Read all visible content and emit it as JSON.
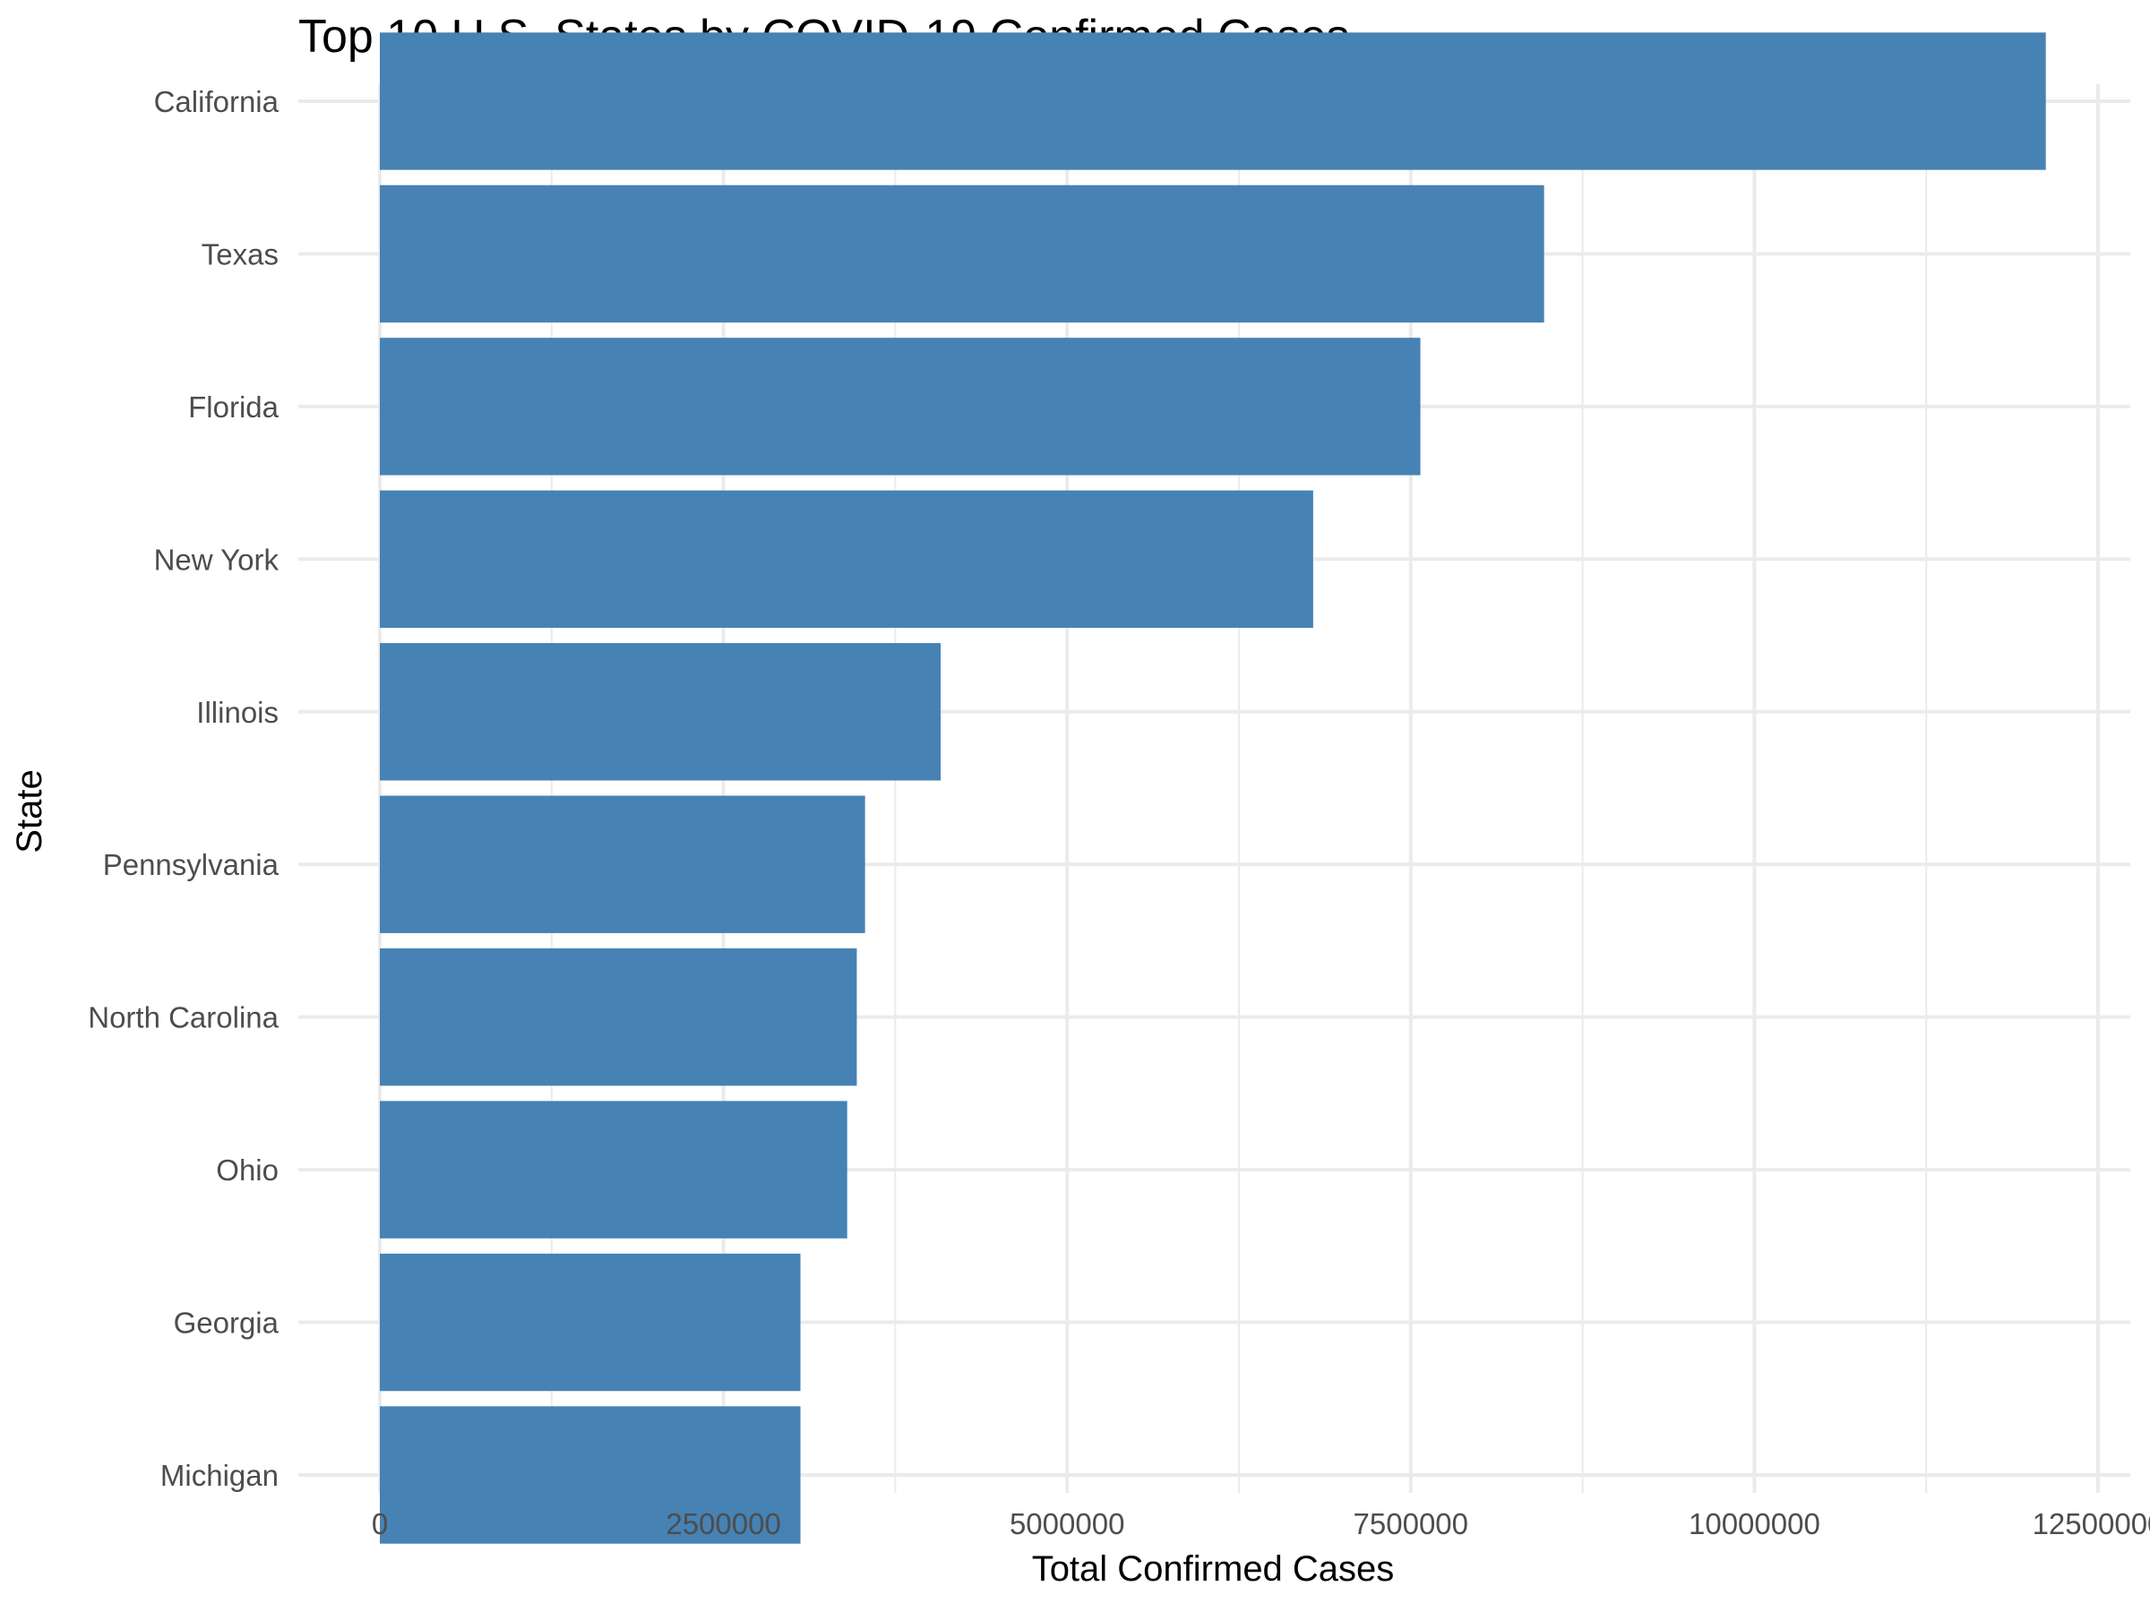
{
  "chart_data": {
    "type": "bar",
    "orientation": "horizontal",
    "title": "Top 10 U.S. States by COVID-19 Confirmed Cases",
    "xlabel": "Total Confirmed Cases",
    "ylabel": "State",
    "categories": [
      "California",
      "Texas",
      "Florida",
      "New York",
      "Illinois",
      "Pennsylvania",
      "North Carolina",
      "Ohio",
      "Georgia",
      "Michigan"
    ],
    "values": [
      12120000,
      8470000,
      7570000,
      6790000,
      4080000,
      3530000,
      3470000,
      3400000,
      3060000,
      3060000
    ],
    "xlim": [
      0,
      12500000
    ],
    "x_ticks": [
      0,
      2500000,
      5000000,
      7500000,
      10000000,
      12500000
    ],
    "x_tick_labels": [
      "0",
      "2500000",
      "5000000",
      "7500000",
      "10000000",
      "12500000"
    ],
    "grid": true,
    "legend": "none",
    "bar_color": "#4682B4",
    "grid_color": "#ebebeb"
  }
}
